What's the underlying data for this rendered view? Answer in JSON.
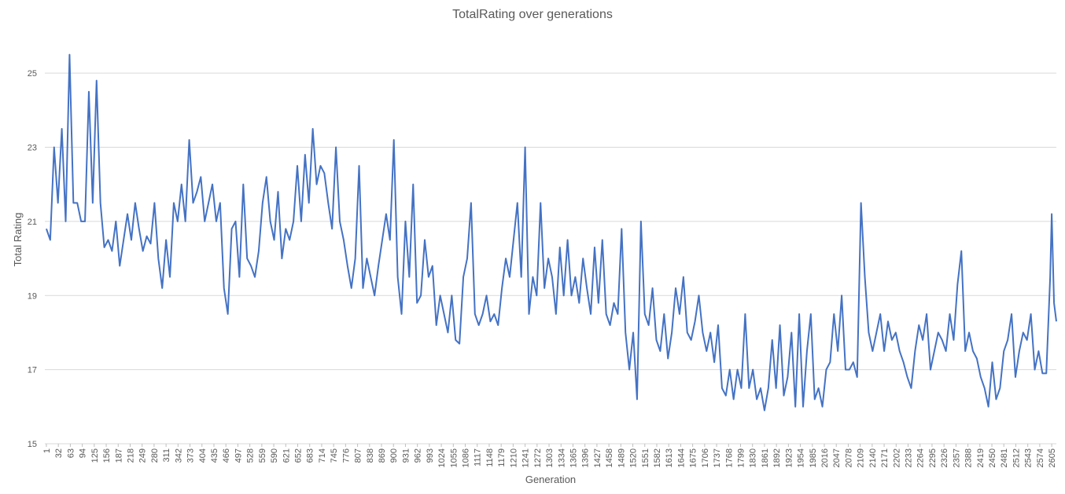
{
  "chart_data": {
    "type": "line",
    "title": "TotalRating over generations",
    "x_label": "Generation",
    "y_label": "Total Rating",
    "xlim": [
      -3,
      2617
    ],
    "ylim": [
      15,
      26
    ],
    "yticks": [
      15,
      17,
      19,
      21,
      23,
      25
    ],
    "xticks": [
      1,
      32,
      63,
      94,
      125,
      156,
      187,
      218,
      249,
      280,
      311,
      342,
      373,
      404,
      435,
      466,
      497,
      528,
      559,
      590,
      621,
      652,
      683,
      714,
      745,
      776,
      807,
      838,
      869,
      900,
      931,
      962,
      993,
      1024,
      1055,
      1086,
      1117,
      1148,
      1179,
      1210,
      1241,
      1272,
      1303,
      1334,
      1365,
      1396,
      1427,
      1458,
      1489,
      1520,
      1551,
      1582,
      1613,
      1644,
      1675,
      1706,
      1737,
      1768,
      1799,
      1830,
      1861,
      1892,
      1923,
      1954,
      1985,
      2016,
      2047,
      2078,
      2109,
      2140,
      2171,
      2202,
      2233,
      2264,
      2295,
      2326,
      2357,
      2388,
      2419,
      2450,
      2481,
      2512,
      2543,
      2574,
      2605
    ],
    "grid": true,
    "series": [
      {
        "name": "TotalRating",
        "color": "#4472c4",
        "x": [
          1,
          11,
          21,
          31,
          41,
          51,
          61,
          71,
          81,
          91,
          101,
          111,
          121,
          131,
          141,
          151,
          161,
          171,
          181,
          191,
          201,
          211,
          221,
          231,
          241,
          251,
          261,
          271,
          281,
          291,
          301,
          311,
          321,
          331,
          341,
          351,
          361,
          371,
          381,
          391,
          401,
          411,
          421,
          431,
          441,
          451,
          461,
          471,
          481,
          491,
          501,
          511,
          521,
          531,
          541,
          551,
          561,
          571,
          581,
          591,
          601,
          611,
          621,
          631,
          641,
          651,
          661,
          671,
          681,
          691,
          701,
          711,
          721,
          731,
          741,
          751,
          761,
          771,
          781,
          791,
          801,
          811,
          821,
          831,
          841,
          851,
          861,
          871,
          881,
          891,
          901,
          911,
          921,
          931,
          941,
          951,
          961,
          971,
          981,
          991,
          1001,
          1011,
          1021,
          1031,
          1041,
          1051,
          1061,
          1071,
          1081,
          1091,
          1101,
          1111,
          1121,
          1131,
          1141,
          1151,
          1161,
          1171,
          1181,
          1191,
          1201,
          1211,
          1221,
          1231,
          1241,
          1251,
          1261,
          1271,
          1281,
          1291,
          1301,
          1311,
          1321,
          1331,
          1341,
          1351,
          1361,
          1371,
          1381,
          1391,
          1401,
          1411,
          1421,
          1431,
          1441,
          1451,
          1461,
          1471,
          1481,
          1491,
          1501,
          1511,
          1521,
          1531,
          1541,
          1551,
          1561,
          1571,
          1581,
          1591,
          1601,
          1611,
          1621,
          1631,
          1641,
          1651,
          1661,
          1671,
          1681,
          1691,
          1701,
          1711,
          1721,
          1731,
          1741,
          1751,
          1761,
          1771,
          1781,
          1791,
          1801,
          1811,
          1821,
          1831,
          1841,
          1851,
          1861,
          1871,
          1881,
          1891,
          1901,
          1911,
          1921,
          1931,
          1941,
          1951,
          1961,
          1971,
          1981,
          1991,
          2001,
          2011,
          2021,
          2031,
          2041,
          2051,
          2061,
          2071,
          2081,
          2091,
          2101,
          2111,
          2121,
          2131,
          2141,
          2151,
          2161,
          2171,
          2181,
          2191,
          2201,
          2211,
          2221,
          2231,
          2241,
          2251,
          2261,
          2271,
          2281,
          2291,
          2301,
          2311,
          2321,
          2331,
          2341,
          2351,
          2361,
          2371,
          2381,
          2391,
          2401,
          2411,
          2421,
          2431,
          2441,
          2451,
          2461,
          2471,
          2481,
          2491,
          2501,
          2511,
          2521,
          2531,
          2541,
          2551,
          2561,
          2571,
          2581,
          2591,
          2601,
          2605,
          2611,
          2617
        ],
        "values": [
          20.8,
          20.5,
          23.0,
          21.5,
          23.5,
          21.0,
          25.5,
          21.5,
          21.5,
          21.0,
          21.0,
          24.5,
          21.5,
          24.8,
          21.5,
          20.3,
          20.5,
          20.2,
          21.0,
          19.8,
          20.5,
          21.2,
          20.5,
          21.5,
          20.8,
          20.2,
          20.6,
          20.4,
          21.5,
          20.0,
          19.2,
          20.5,
          19.5,
          21.5,
          21.0,
          22.0,
          21.0,
          23.2,
          21.5,
          21.8,
          22.2,
          21.0,
          21.5,
          22.0,
          21.0,
          21.5,
          19.2,
          18.5,
          20.8,
          21.0,
          19.5,
          22.0,
          20.0,
          19.8,
          19.5,
          20.2,
          21.5,
          22.2,
          21.0,
          20.5,
          21.8,
          20.0,
          20.8,
          20.5,
          21.0,
          22.5,
          21.0,
          22.8,
          21.5,
          23.5,
          22.0,
          22.5,
          22.3,
          21.5,
          20.8,
          23.0,
          21.0,
          20.5,
          19.8,
          19.2,
          20.0,
          22.5,
          19.2,
          20.0,
          19.5,
          19.0,
          19.8,
          20.5,
          21.2,
          20.5,
          23.2,
          19.5,
          18.5,
          21.0,
          19.5,
          22.0,
          18.8,
          19.0,
          20.5,
          19.5,
          19.8,
          18.2,
          19.0,
          18.5,
          18.0,
          19.0,
          17.8,
          17.7,
          19.5,
          20.0,
          21.5,
          18.5,
          18.2,
          18.5,
          19.0,
          18.3,
          18.5,
          18.2,
          19.2,
          20.0,
          19.5,
          20.5,
          21.5,
          19.5,
          23.0,
          18.5,
          19.5,
          19.0,
          21.5,
          19.2,
          20.0,
          19.5,
          18.5,
          20.3,
          19.0,
          20.5,
          19.0,
          19.5,
          18.8,
          20.0,
          19.2,
          18.5,
          20.3,
          18.8,
          20.5,
          18.5,
          18.2,
          18.8,
          18.5,
          20.8,
          18.0,
          17.0,
          18.0,
          16.2,
          21.0,
          18.5,
          18.2,
          19.2,
          17.8,
          17.5,
          18.5,
          17.3,
          18.0,
          19.2,
          18.5,
          19.5,
          18.0,
          17.8,
          18.3,
          19.0,
          18.0,
          17.5,
          18.0,
          17.2,
          18.2,
          16.5,
          16.3,
          17.0,
          16.2,
          17.0,
          16.5,
          18.5,
          16.5,
          17.0,
          16.2,
          16.5,
          15.9,
          16.5,
          17.8,
          16.5,
          18.2,
          16.3,
          16.8,
          18.0,
          16.0,
          18.5,
          16.0,
          17.5,
          18.5,
          16.2,
          16.5,
          16.0,
          17.0,
          17.2,
          18.5,
          17.5,
          19.0,
          17.0,
          17.0,
          17.2,
          16.8,
          21.5,
          19.5,
          18.0,
          17.5,
          18.0,
          18.5,
          17.5,
          18.3,
          17.8,
          18.0,
          17.5,
          17.2,
          16.8,
          16.5,
          17.5,
          18.2,
          17.8,
          18.5,
          17.0,
          17.5,
          18.0,
          17.8,
          17.5,
          18.5,
          17.8,
          19.3,
          20.2,
          17.5,
          18.0,
          17.5,
          17.3,
          16.8,
          16.5,
          16.0,
          17.2,
          16.2,
          16.5,
          17.5,
          17.8,
          18.5,
          16.8,
          17.5,
          18.0,
          17.8,
          18.5,
          17.0,
          17.5,
          16.9,
          16.9,
          19.5,
          21.2,
          18.8,
          18.3
        ]
      }
    ]
  }
}
